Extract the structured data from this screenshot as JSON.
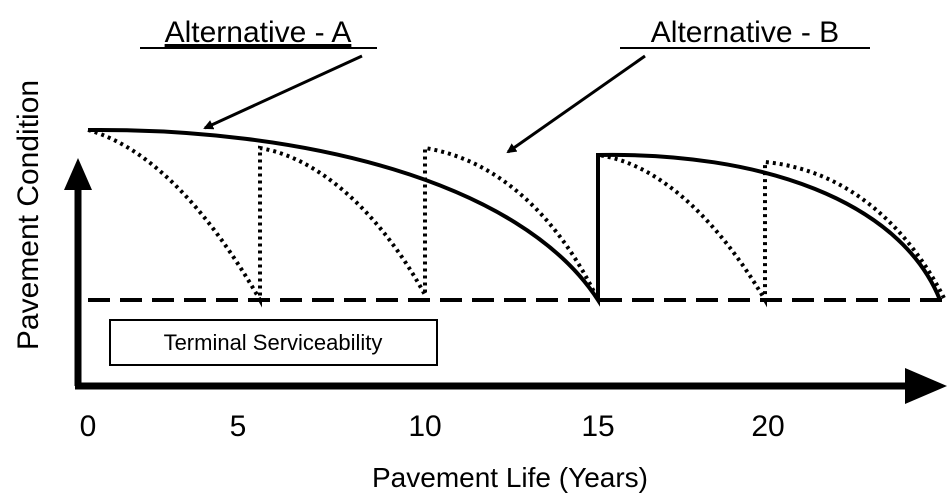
{
  "labels": {
    "alternative_a": "Alternative - A",
    "alternative_b": "Alternative - B",
    "terminal": "Terminal Serviceability"
  },
  "axes": {
    "y_label": "Pavement Condition",
    "x_label": "Pavement Life (Years)",
    "x_ticks": [
      "0",
      "5",
      "10",
      "15",
      "20"
    ]
  }
}
